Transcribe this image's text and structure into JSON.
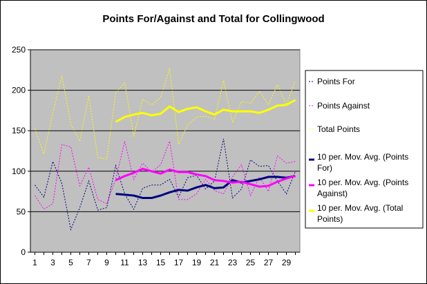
{
  "chart_data": {
    "type": "line",
    "title": "Points For/Against and Total for Collingwood",
    "xlabel": "",
    "ylabel": "",
    "ylim": [
      0,
      250
    ],
    "yticks": [
      0,
      50,
      100,
      150,
      200,
      250
    ],
    "xticks": [
      1,
      3,
      5,
      7,
      9,
      11,
      13,
      15,
      17,
      19,
      21,
      23,
      25,
      27,
      29
    ],
    "x": [
      1,
      2,
      3,
      4,
      5,
      6,
      7,
      8,
      9,
      10,
      11,
      12,
      13,
      14,
      15,
      16,
      17,
      18,
      19,
      20,
      21,
      22,
      23,
      24,
      25,
      26,
      27,
      28,
      29,
      30
    ],
    "plot_background": "#c0c0c0",
    "grid": true,
    "legend_position": "right",
    "series": [
      {
        "name": "Points For",
        "style": "dotted",
        "color": "#000080",
        "values": [
          83,
          68,
          112,
          85,
          28,
          55,
          88,
          52,
          55,
          107,
          72,
          53,
          79,
          83,
          83,
          90,
          68,
          92,
          95,
          78,
          88,
          140,
          67,
          78,
          114,
          106,
          107,
          88,
          72,
          100
        ]
      },
      {
        "name": "Points Against",
        "style": "dotted",
        "color": "#ff00ff",
        "values": [
          70,
          53,
          60,
          133,
          130,
          82,
          105,
          65,
          60,
          90,
          137,
          90,
          110,
          99,
          108,
          137,
          65,
          65,
          72,
          90,
          76,
          72,
          93,
          108,
          70,
          93,
          75,
          119,
          110,
          112
        ]
      },
      {
        "name": "Total Points",
        "style": "dotted",
        "color": "#ffff00",
        "values": [
          153,
          121,
          172,
          218,
          158,
          137,
          193,
          117,
          115,
          197,
          209,
          143,
          189,
          182,
          191,
          227,
          133,
          157,
          167,
          168,
          164,
          212,
          160,
          186,
          184,
          199,
          182,
          207,
          182,
          212
        ]
      },
      {
        "name": "10 per. Mov. Avg. (Points For)",
        "style": "solid",
        "color": "#000080",
        "moving_average_period": 10,
        "values": [
          null,
          null,
          null,
          null,
          null,
          null,
          null,
          null,
          null,
          72,
          71,
          70,
          67,
          67,
          70,
          74,
          77,
          76,
          80,
          83,
          79,
          80,
          89,
          86,
          88,
          90,
          93,
          93,
          92,
          94
        ]
      },
      {
        "name": "10 per. Mov. Avg. (Points Against)",
        "style": "solid",
        "color": "#ff00ff",
        "moving_average_period": 10,
        "values": [
          null,
          null,
          null,
          null,
          null,
          null,
          null,
          null,
          null,
          89,
          94,
          98,
          103,
          100,
          97,
          102,
          99,
          99,
          96,
          94,
          89,
          88,
          86,
          87,
          84,
          81,
          82,
          87,
          91,
          94
        ]
      },
      {
        "name": "10 per. Mov. Avg. (Total Points)",
        "style": "solid",
        "color": "#ffff00",
        "moving_average_period": 10,
        "values": [
          null,
          null,
          null,
          null,
          null,
          null,
          null,
          null,
          null,
          161,
          167,
          170,
          172,
          169,
          171,
          180,
          173,
          177,
          179,
          174,
          170,
          176,
          174,
          174,
          174,
          172,
          176,
          181,
          182,
          188
        ]
      }
    ]
  }
}
